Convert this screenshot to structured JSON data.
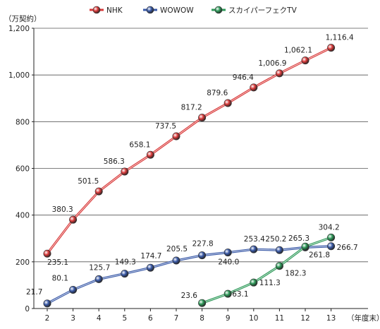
{
  "chart_data": {
    "type": "line",
    "ylabel": "（万契約）",
    "xlabel": "（年度末）",
    "x": [
      "2",
      "3",
      "4",
      "5",
      "6",
      "7",
      "8",
      "9",
      "10",
      "11",
      "12",
      "13"
    ],
    "ylim": [
      0,
      1200
    ],
    "yticks": [
      "0",
      "200",
      "400",
      "600",
      "800",
      "1,000",
      "1,200"
    ],
    "ytick_values": [
      0,
      200,
      400,
      600,
      800,
      1000,
      1200
    ],
    "grid": true,
    "legend_position": "top-center",
    "series": [
      {
        "name": "NHK",
        "color": "#d93a3a",
        "values": [
          235.1,
          380.3,
          501.5,
          586.3,
          658.1,
          737.5,
          817.2,
          879.6,
          946.4,
          1006.9,
          1062.1,
          1116.4
        ],
        "labels": [
          "235.1",
          "380.3",
          "501.5",
          "586.3",
          "658.1",
          "737.5",
          "817.2",
          "879.6",
          "946.4",
          "1,006.9",
          "1,062.1",
          "1,116.4"
        ]
      },
      {
        "name": "WOWOW",
        "color": "#3a5aa8",
        "values": [
          21.7,
          80.1,
          125.7,
          149.3,
          174.7,
          205.5,
          227.8,
          240.0,
          253.4,
          250.2,
          261.8,
          266.7
        ],
        "labels": [
          "21.7",
          "80.1",
          "125.7",
          "149.3",
          "174.7",
          "205.5",
          "227.8",
          "240.0",
          "253.4",
          "250.2",
          "261.8",
          "266.7"
        ]
      },
      {
        "name": "スカイパーフェクTV",
        "color": "#2f9a5a",
        "values": [
          null,
          null,
          null,
          null,
          null,
          null,
          23.6,
          63.1,
          111.3,
          182.3,
          265.3,
          304.2
        ],
        "labels": [
          "",
          "",
          "",
          "",
          "",
          "",
          "23.6",
          "63.1",
          "111.3",
          "182.3",
          "265.3",
          "304.2"
        ]
      }
    ]
  }
}
